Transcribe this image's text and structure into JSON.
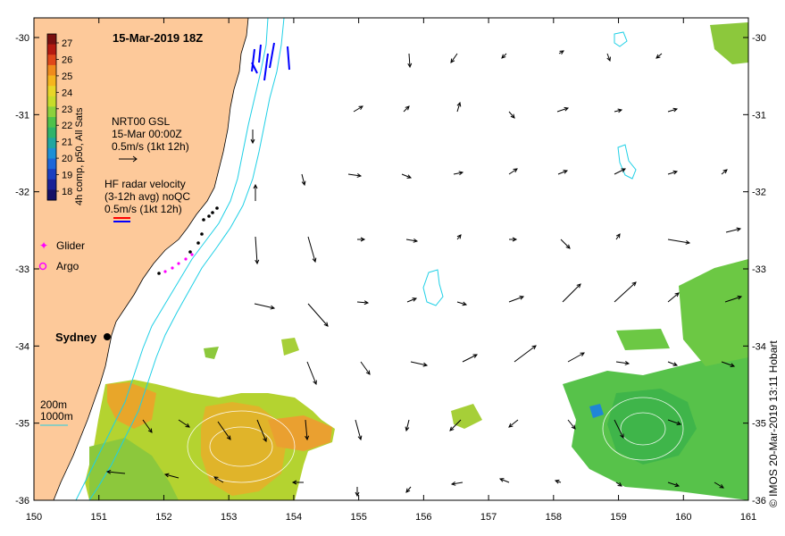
{
  "title": "15-Mar-2019 18Z",
  "colorbar": {
    "label": "4h comp, p50, All Sats",
    "ticks": [
      "27",
      "26",
      "25",
      "24",
      "23",
      "22",
      "21",
      "20",
      "19",
      "18"
    ],
    "colors": [
      "#7a1010",
      "#b51a10",
      "#e0481a",
      "#f08b1d",
      "#f5b51e",
      "#e8d628",
      "#c8dc2a",
      "#8cd13c",
      "#4fc24a",
      "#2fb36a",
      "#1fa6a0",
      "#1d8fd6",
      "#1d66d8",
      "#1a3fc0",
      "#1a2196",
      "#141066"
    ]
  },
  "legend": {
    "nrt_lines": [
      "NRT00 GSL",
      "15-Mar 00:00Z",
      "0.5m/s (1kt 12h)"
    ],
    "hf_lines": [
      "HF radar velocity",
      "(3-12h avg) noQC",
      "0.5m/s (1kt 12h)"
    ],
    "glider": "Glider",
    "argo": "Argo",
    "city": "Sydney",
    "contour_200": "200m",
    "contour_1000": "1000m"
  },
  "axes": {
    "x_ticks": [
      "150",
      "151",
      "152",
      "153",
      "154",
      "155",
      "156",
      "157",
      "158",
      "159",
      "160",
      "161"
    ],
    "y_ticks": [
      "-30",
      "-31",
      "-32",
      "-33",
      "-34",
      "-35",
      "-36"
    ]
  },
  "credit": "© IMOS 20-Mar-2019 13:11 Hobart",
  "colors": {
    "land": "#fdc99a",
    "contour": "#1fd0e6",
    "glider": "#ff00ff",
    "hf_red": "#ff0000",
    "hf_blue": "#0000ff"
  }
}
